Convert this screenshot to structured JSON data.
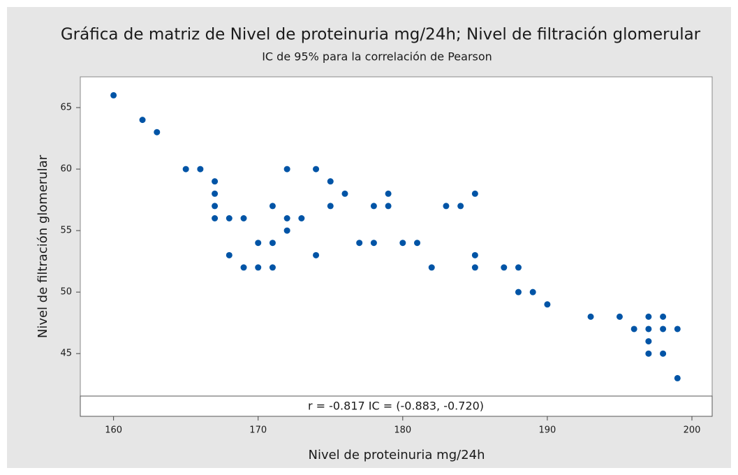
{
  "chart_data": {
    "type": "scatter",
    "title": "Gráfica de matriz de Nivel de proteinuria mg/24h; Nivel de filtración glomerular",
    "subtitle": "IC de 95% para la correlación de Pearson",
    "x_label": "Nivel de proteinuria mg/24h",
    "y_label": "Nivel de filtración glomerular",
    "annotation": "r = -0.817  IC = (-0.883, -0.720)",
    "color": "#0054a6",
    "xlim": [
      157.7,
      201.4
    ],
    "ylim": [
      39.9,
      67.5
    ],
    "xticks": [
      160,
      170,
      180,
      190,
      200
    ],
    "yticks": [
      45,
      50,
      55,
      60,
      65
    ],
    "x": [
      160,
      162,
      163,
      165,
      166,
      167,
      167,
      167,
      167,
      168,
      168,
      169,
      169,
      170,
      170,
      171,
      171,
      171,
      172,
      172,
      172,
      173,
      174,
      174,
      175,
      175,
      176,
      177,
      178,
      178,
      179,
      179,
      180,
      181,
      182,
      183,
      184,
      185,
      185,
      185,
      187,
      188,
      188,
      189,
      190,
      193,
      195,
      196,
      197,
      197,
      197,
      197,
      198,
      198,
      198,
      199,
      199
    ],
    "y": [
      66,
      64,
      63,
      60,
      60,
      59,
      58,
      57,
      56,
      56,
      53,
      56,
      52,
      54,
      52,
      57,
      54,
      52,
      60,
      56,
      55,
      56,
      60,
      53,
      59,
      57,
      58,
      54,
      57,
      54,
      58,
      57,
      54,
      54,
      52,
      57,
      57,
      58,
      53,
      52,
      52,
      52,
      50,
      50,
      49,
      48,
      48,
      47,
      48,
      47,
      46,
      45,
      48,
      47,
      45,
      47,
      43
    ]
  }
}
